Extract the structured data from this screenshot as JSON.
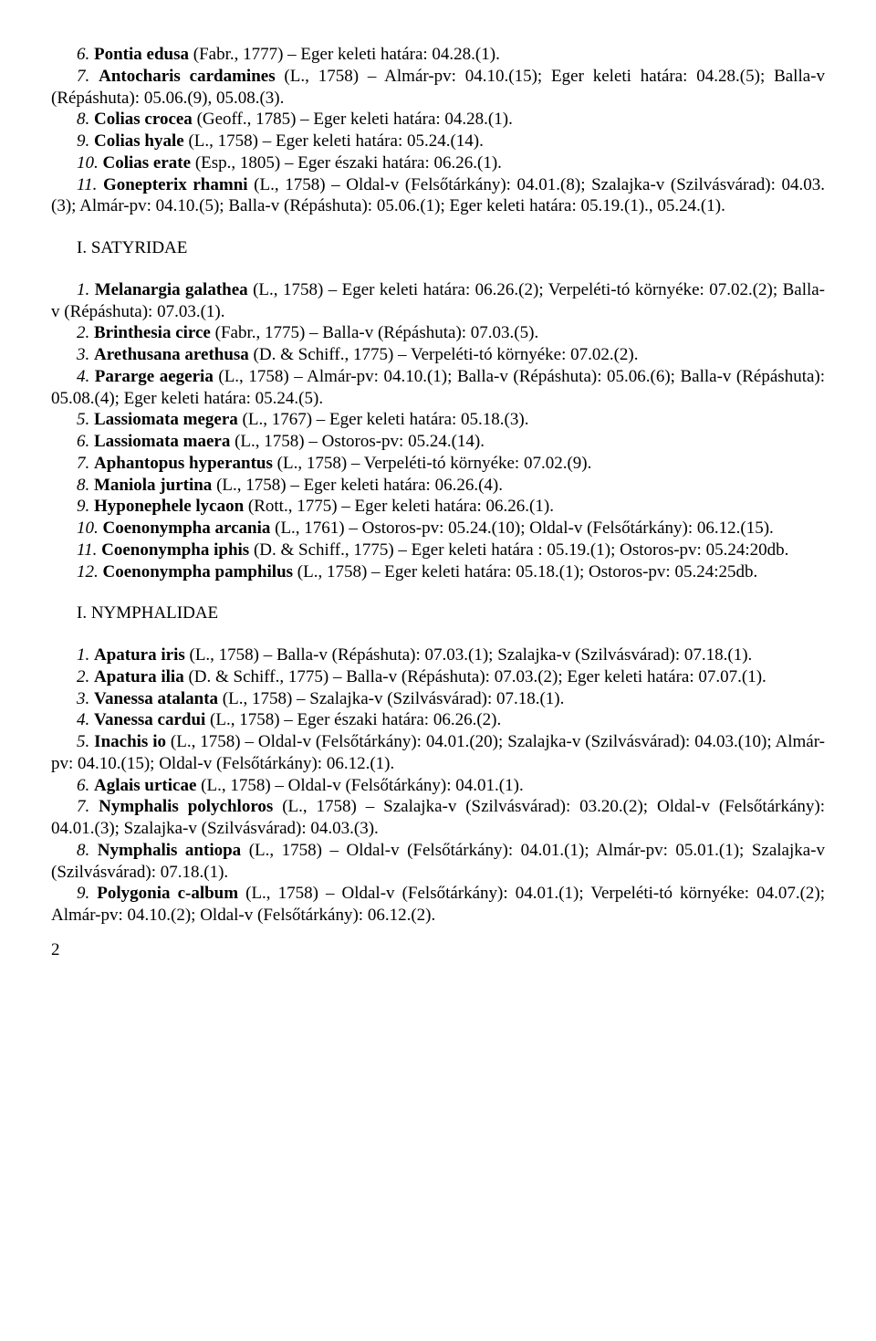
{
  "entries_top": [
    {
      "num": "6.",
      "species": "Pontia edusa",
      "auth": " (Fabr., 1777) – Eger keleti határa: 04.28.(1)."
    },
    {
      "num": "7.",
      "species": "Antocharis cardamines",
      "auth": " (L., 1758) – Almár-pv: 04.10.(15); Eger keleti határa: 04.28.(5); Balla-v (Répáshuta): 05.06.(9), 05.08.(3)."
    },
    {
      "num": "8.",
      "species": "Colias crocea",
      "auth": " (Geoff., 1785) – Eger keleti határa: 04.28.(1)."
    },
    {
      "num": "9.",
      "species": "Colias hyale",
      "auth": " (L., 1758) – Eger keleti határa: 05.24.(14)."
    },
    {
      "num": "10.",
      "species": "Colias erate",
      "auth": " (Esp., 1805) – Eger északi határa: 06.26.(1)."
    },
    {
      "num": "11.",
      "species": "Gonepterix rhamni",
      "auth": " (L., 1758) – Oldal-v (Felsőtárkány): 04.01.(8); Szalajka-v (Szilvásvárad): 04.03.(3); Almár-pv: 04.10.(5); Balla-v (Répáshuta): 05.06.(1); Eger keleti határa: 05.19.(1)., 05.24.(1)."
    }
  ],
  "section_satyridae": "I. SATYRIDAE",
  "entries_satyridae": [
    {
      "num": "1.",
      "species": "Melanargia galathea",
      "auth": " (L., 1758) – Eger keleti határa: 06.26.(2); Verpeléti-tó környéke: 07.02.(2); Balla-v (Répáshuta): 07.03.(1)."
    },
    {
      "num": "2.",
      "species": "Brinthesia circe",
      "auth": " (Fabr., 1775) – Balla-v (Répáshuta): 07.03.(5)."
    },
    {
      "num": "3.",
      "species": "Arethusana arethusa",
      "auth": " (D. & Schiff., 1775) – Verpeléti-tó környéke: 07.02.(2)."
    },
    {
      "num": "4.",
      "species": "Pararge aegeria",
      "auth": " (L., 1758) – Almár-pv: 04.10.(1); Balla-v (Répáshuta): 05.06.(6); Balla-v (Répáshuta): 05.08.(4); Eger keleti határa: 05.24.(5)."
    },
    {
      "num": "5.",
      "species": "Lassiomata megera",
      "auth": " (L., 1767) – Eger keleti határa: 05.18.(3)."
    },
    {
      "num": "6.",
      "species": "Lassiomata maera",
      "auth": " (L., 1758) – Ostoros-pv: 05.24.(14)."
    },
    {
      "num": "7.",
      "species": "Aphantopus hyperantus",
      "auth": " (L., 1758) – Verpeléti-tó környéke: 07.02.(9)."
    },
    {
      "num": "8.",
      "species": "Maniola jurtina",
      "auth": " (L., 1758) – Eger keleti határa: 06.26.(4)."
    },
    {
      "num": "9.",
      "species": "Hyponephele lycaon",
      "auth": " (Rott., 1775) – Eger keleti határa: 06.26.(1)."
    },
    {
      "num": "10.",
      "species": "Coenonympha arcania",
      "auth": " (L., 1761) – Ostoros-pv: 05.24.(10); Oldal-v (Felsőtárkány): 06.12.(15)."
    },
    {
      "num": "11.",
      "species": "Coenonympha iphis",
      "auth": " (D. & Schiff., 1775) – Eger keleti határa : 05.19.(1); Ostoros-pv: 05.24:20db."
    },
    {
      "num": "12.",
      "species": "Coenonympha pamphilus",
      "auth": " (L., 1758) – Eger keleti határa: 05.18.(1); Ostoros-pv: 05.24:25db."
    }
  ],
  "section_nymphalidae": "I. NYMPHALIDAE",
  "entries_nymphalidae": [
    {
      "num": "1.",
      "species": "Apatura iris",
      "auth": " (L., 1758) – Balla-v (Répáshuta): 07.03.(1); Szalajka-v (Szilvásvárad): 07.18.(1)."
    },
    {
      "num": "2.",
      "species": "Apatura ilia",
      "auth": " (D. & Schiff., 1775) – Balla-v (Répáshuta): 07.03.(2); Eger keleti határa: 07.07.(1)."
    },
    {
      "num": "3.",
      "species": "Vanessa atalanta",
      "auth": " (L., 1758) – Szalajka-v (Szilvásvárad): 07.18.(1)."
    },
    {
      "num": "4.",
      "species": "Vanessa cardui",
      "auth": " (L., 1758) – Eger északi határa: 06.26.(2)."
    },
    {
      "num": "5.",
      "species": "Inachis io",
      "auth": " (L., 1758) – Oldal-v (Felsőtárkány): 04.01.(20); Szalajka-v (Szilvásvárad): 04.03.(10); Almár-pv: 04.10.(15); Oldal-v (Felsőtárkány): 06.12.(1)."
    },
    {
      "num": "6.",
      "species": "Aglais urticae",
      "auth": " (L., 1758) – Oldal-v (Felsőtárkány): 04.01.(1)."
    },
    {
      "num": "7.",
      "species": "Nymphalis polychloros",
      "auth": " (L., 1758) – Szalajka-v (Szilvásvárad): 03.20.(2); Oldal-v (Felsőtárkány): 04.01.(3); Szalajka-v (Szilvásvárad): 04.03.(3)."
    },
    {
      "num": "8.",
      "species": "Nymphalis antiopa",
      "auth": " (L., 1758) – Oldal-v (Felsőtárkány): 04.01.(1); Almár-pv: 05.01.(1); Szalajka-v (Szilvásvárad): 07.18.(1)."
    },
    {
      "num": "9.",
      "species": "Polygonia c-album",
      "auth": " (L., 1758) – Oldal-v (Felsőtárkány): 04.01.(1); Verpeléti-tó környéke: 04.07.(2); Almár-pv: 04.10.(2); Oldal-v (Felsőtárkány): 06.12.(2)."
    }
  ],
  "page_number": "2"
}
